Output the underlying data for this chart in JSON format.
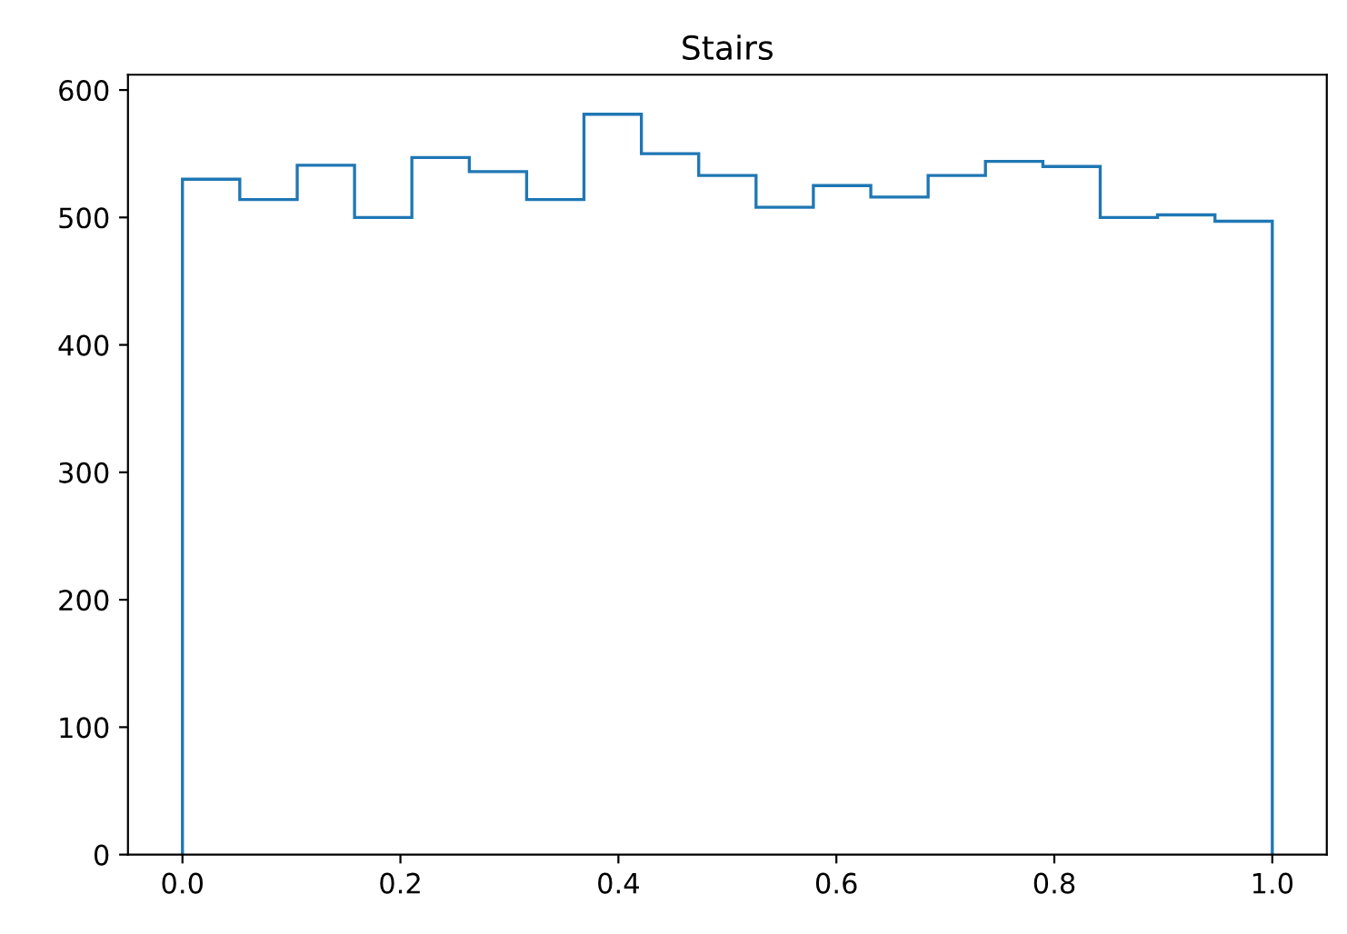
{
  "chart_data": {
    "type": "histogram",
    "title": "Stairs",
    "bins": [
      0,
      0.0526,
      0.1053,
      0.1579,
      0.2105,
      0.2632,
      0.3158,
      0.3684,
      0.4211,
      0.4737,
      0.5263,
      0.5789,
      0.6316,
      0.6842,
      0.7368,
      0.7895,
      0.8421,
      0.8947,
      0.9474,
      1
    ],
    "values": [
      530,
      514,
      541,
      500,
      547,
      536,
      514,
      581,
      550,
      533,
      508,
      525,
      516,
      533,
      544,
      540,
      500,
      502,
      497
    ],
    "color": "#1f77b4",
    "xlim": [
      -0.05,
      1.05
    ],
    "xticks": [
      {
        "value": 0,
        "label": "0.0"
      },
      {
        "value": 0.2,
        "label": "0.2"
      },
      {
        "value": 0.4,
        "label": "0.4"
      },
      {
        "value": 0.6,
        "label": "0.6"
      },
      {
        "value": 0.8,
        "label": "0.8"
      },
      {
        "value": 1,
        "label": "1.0"
      }
    ],
    "ylim": [
      0,
      612
    ],
    "yticks": [
      0,
      100,
      200,
      300,
      400,
      500,
      600
    ],
    "grid": false
  }
}
